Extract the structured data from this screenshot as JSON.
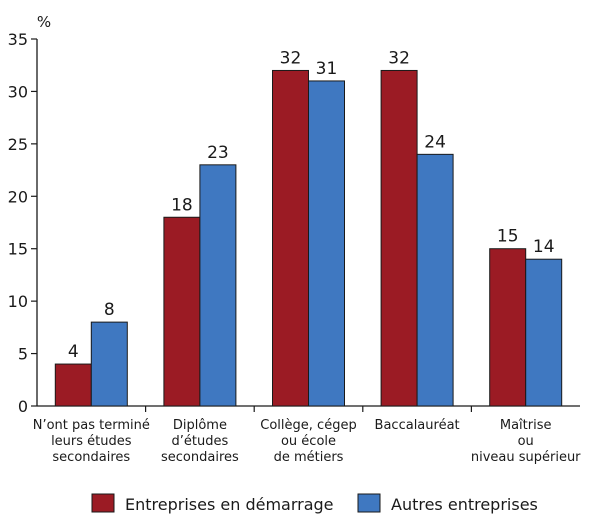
{
  "chart_data": {
    "type": "bar",
    "ylabel": "%",
    "ylim": [
      0,
      35
    ],
    "yticks": [
      "0",
      "5",
      "10",
      "15",
      "20",
      "25",
      "30",
      "35"
    ],
    "categories": [
      [
        "N’ont pas terminé",
        "leurs études",
        "secondaires"
      ],
      [
        "Diplôme",
        "d’études",
        "secondaires"
      ],
      [
        "Collège, cégep",
        "ou école",
        "de métiers"
      ],
      [
        "Baccalauréat"
      ],
      [
        "Maîtrise",
        "ou",
        "niveau supérieur"
      ]
    ],
    "series": [
      {
        "name": "Entreprises en démarrage",
        "values": [
          4,
          18,
          32,
          32,
          15
        ],
        "color": "#9b1b24"
      },
      {
        "name": "Autres entreprises",
        "values": [
          8,
          23,
          31,
          24,
          14
        ],
        "color": "#3f78c1"
      }
    ],
    "data_labels": true,
    "grid": false,
    "legend": "bottom-center"
  }
}
